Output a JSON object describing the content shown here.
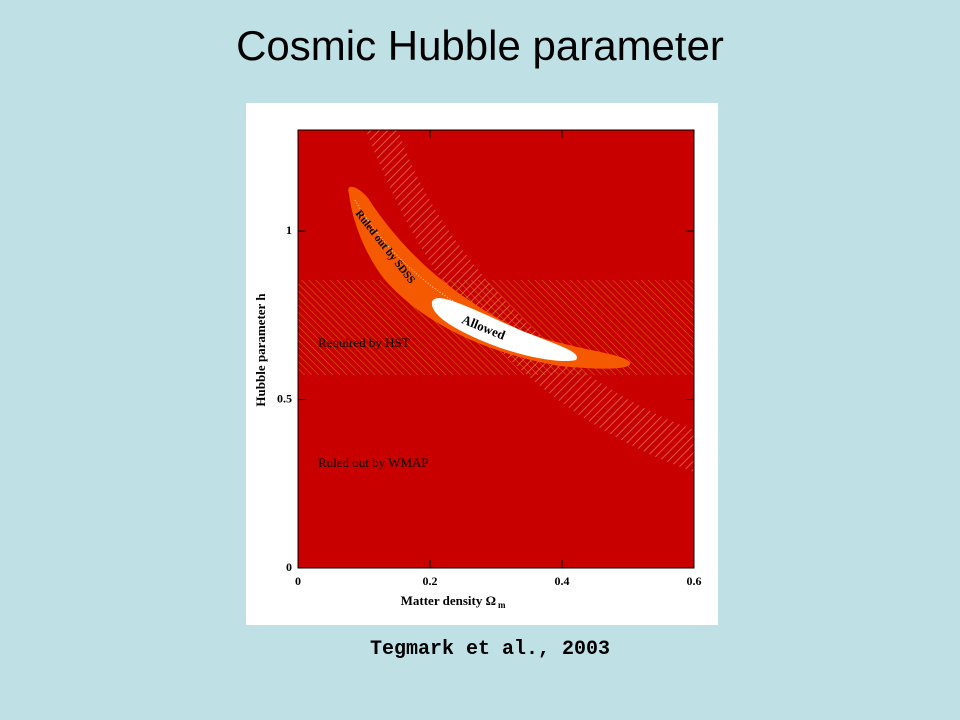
{
  "title": "Cosmic Hubble parameter",
  "caption": "Tegmark et al., 2003",
  "chart_data": {
    "type": "region",
    "xlabel": "Matter density Ω",
    "xlabel_subscript": "m",
    "ylabel": "Hubble parameter h",
    "xlim": [
      0,
      0.6
    ],
    "xticks": [
      0,
      0.2,
      0.4,
      0.6
    ],
    "ylim": [
      0,
      1.3
    ],
    "yticks": [
      0,
      0.5,
      1
    ],
    "annotations": [
      "Ruled out by SDSS",
      "Allowed",
      "Required by HST",
      "Ruled out by WMAP"
    ]
  }
}
